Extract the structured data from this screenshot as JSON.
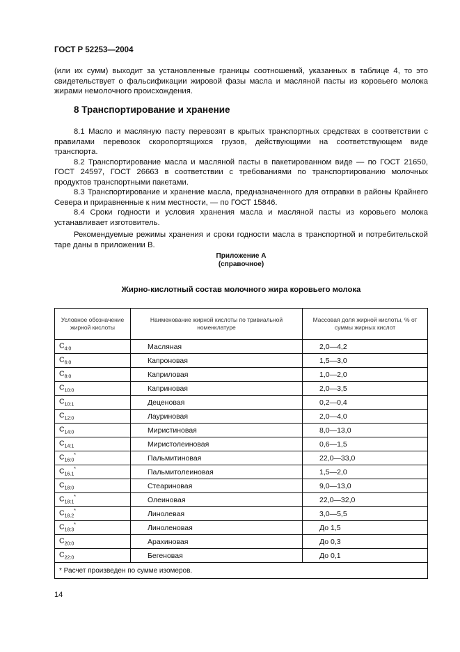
{
  "header": "ГОСТ Р 52253—2004",
  "para_cont": "(или их сумм) выходит за установленные границы соотношений, указанных в таблице 4, то это свидетельствует о фальсификации жировой фазы масла и масляной пасты из коровьего молока жирами немолочного происхождения.",
  "section_title": "8  Транспортирование и хранение",
  "paragraphs": [
    "8.1 Масло и масляную пасту перевозят в крытых транспортных средствах в соответствии с правилами перевозок скоропортящихся грузов, действующими на соответствующем виде транспорта.",
    "8.2 Транспортирование масла и масляной пасты в пакетированном виде — по ГОСТ 21650, ГОСТ 24597, ГОСТ 26663 в соответствии с требованиями по транспортированию молочных продуктов транспортными пакетами.",
    "8.3 Транспортирование и хранение масла, предназначенного для отправки в районы Крайнего Севера и приравненные к ним местности, — по ГОСТ 15846.",
    "8.4 Сроки годности и условия хранения масла и масляной пасты из коровьего молока устанавливает изготовитель.",
    "Рекомендуемые режимы хранения и сроки годности масла в транспортной и потребительской таре даны в приложении В."
  ],
  "appendix": {
    "title": "Приложение А",
    "subtitle": "(справочное)",
    "table_title": "Жирно-кислотный состав молочного жира коровьего молока"
  },
  "table": {
    "headers": [
      "Условное обозначение жирной кислоты",
      "Наименование жирной кислоты по тривиальной номенклатуре",
      "Массовая доля жирной кислоты, % от суммы жирных кислот"
    ],
    "rows": [
      {
        "c": "C",
        "sub": "4:0",
        "sup": "",
        "name": "Масляная",
        "value": "2,0—4,2"
      },
      {
        "c": "C",
        "sub": "6:0",
        "sup": "",
        "name": "Капроновая",
        "value": "1,5—3,0"
      },
      {
        "c": "C",
        "sub": "8:0",
        "sup": "",
        "name": "Каприловая",
        "value": "1,0—2,0"
      },
      {
        "c": "C",
        "sub": "10:0",
        "sup": "",
        "name": "Каприновая",
        "value": "2,0—3,5"
      },
      {
        "c": "C",
        "sub": "10:1",
        "sup": "",
        "name": "Деценовая",
        "value": "0,2—0,4"
      },
      {
        "c": "C",
        "sub": "12:0",
        "sup": "",
        "name": "Лауриновая",
        "value": "2,0—4,0"
      },
      {
        "c": "C",
        "sub": "14:0",
        "sup": "",
        "name": "Миристиновая",
        "value": "8,0—13,0"
      },
      {
        "c": "C",
        "sub": "14:1",
        "sup": "",
        "name": "Миристолеиновая",
        "value": "0,6—1,5"
      },
      {
        "c": "C",
        "sub": "16:0",
        "sup": "*",
        "name": "Пальмитиновая",
        "value": "22,0—33,0"
      },
      {
        "c": "C",
        "sub": "16.1",
        "sup": "*",
        "name": "Пальмитолеиновая",
        "value": "1,5—2,0"
      },
      {
        "c": "C",
        "sub": "18:0",
        "sup": "",
        "name": "Стеариновая",
        "value": "9,0—13,0"
      },
      {
        "c": "C",
        "sub": "18:1",
        "sup": "*",
        "name": "Олеиновая",
        "value": "22,0—32,0"
      },
      {
        "c": "C",
        "sub": "18.2",
        "sup": "*",
        "name": "Линолевая",
        "value": "3,0—5,5"
      },
      {
        "c": "C",
        "sub": "18:3",
        "sup": "*",
        "name": "Линоленовая",
        "value": "До 1,5"
      },
      {
        "c": "C",
        "sub": "20:0",
        "sup": "",
        "name": "Арахиновая",
        "value": "До 0,3"
      },
      {
        "c": "C",
        "sub": "22:0",
        "sup": "",
        "name": "Бегеновая",
        "value": "До 0,1"
      }
    ],
    "footnote": "*  Расчет произведен по сумме изомеров."
  },
  "page_number": "14"
}
